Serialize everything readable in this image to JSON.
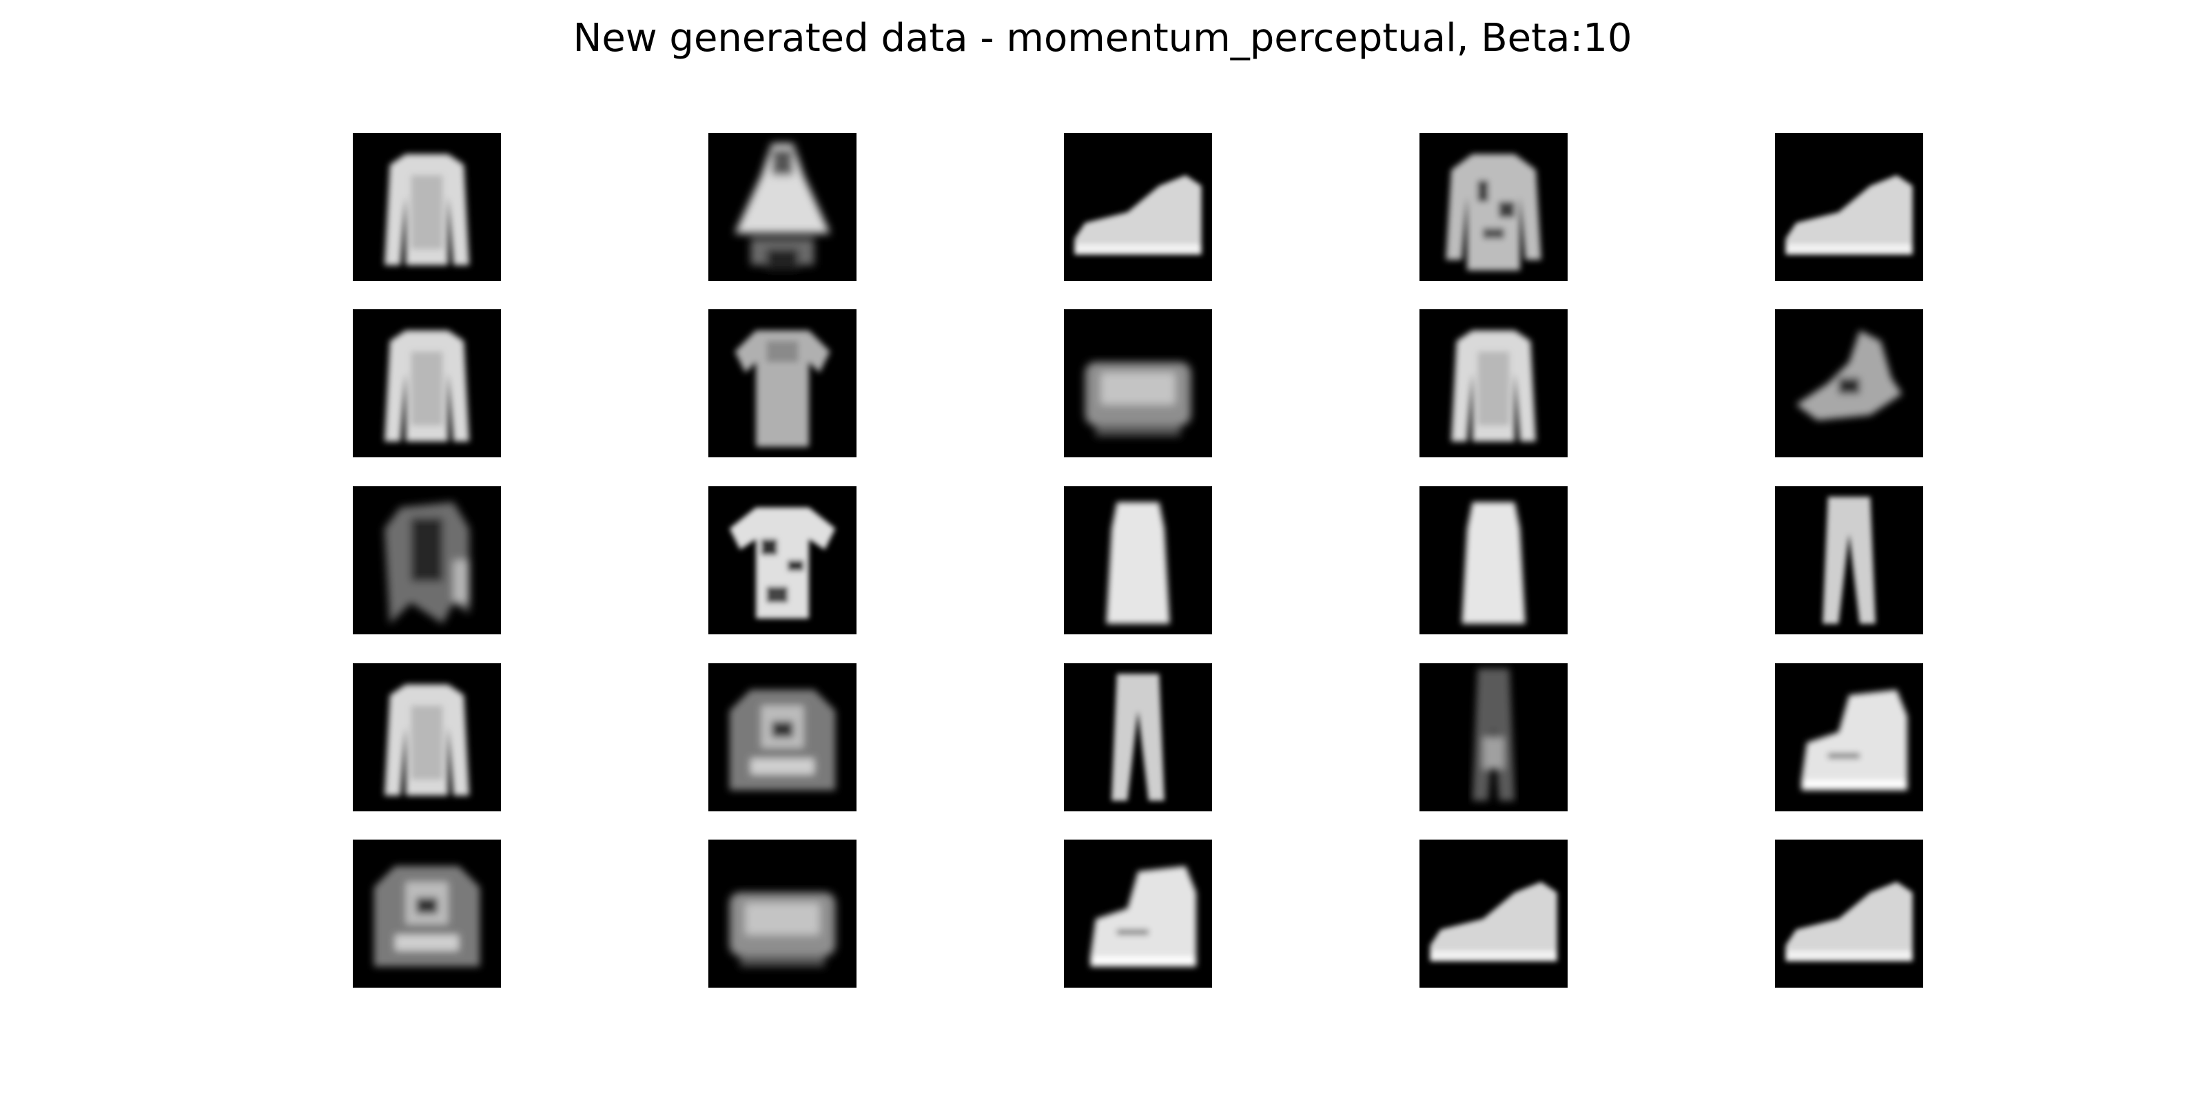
{
  "figure": {
    "title": "New generated data - momentum_perceptual, Beta:10",
    "background_color": "#ffffff",
    "tile_background": "#000000",
    "rows": 5,
    "cols": 5,
    "samples": [
      [
        {
          "item": "long-sleeve-top"
        },
        {
          "item": "dress-blurry"
        },
        {
          "item": "sneaker"
        },
        {
          "item": "long-sleeve-top-patterned"
        },
        {
          "item": "sneaker"
        }
      ],
      [
        {
          "item": "long-sleeve-top"
        },
        {
          "item": "t-shirt"
        },
        {
          "item": "bag"
        },
        {
          "item": "long-sleeve-top"
        },
        {
          "item": "sandal-blurry"
        }
      ],
      [
        {
          "item": "coat-dark"
        },
        {
          "item": "t-shirt-patterned"
        },
        {
          "item": "dress"
        },
        {
          "item": "dress"
        },
        {
          "item": "trouser"
        }
      ],
      [
        {
          "item": "long-sleeve-top"
        },
        {
          "item": "coat-patterned"
        },
        {
          "item": "trouser"
        },
        {
          "item": "trouser-dark"
        },
        {
          "item": "ankle-boot"
        }
      ],
      [
        {
          "item": "coat-patterned"
        },
        {
          "item": "bag"
        },
        {
          "item": "ankle-boot"
        },
        {
          "item": "sneaker"
        },
        {
          "item": "sneaker"
        }
      ]
    ]
  }
}
